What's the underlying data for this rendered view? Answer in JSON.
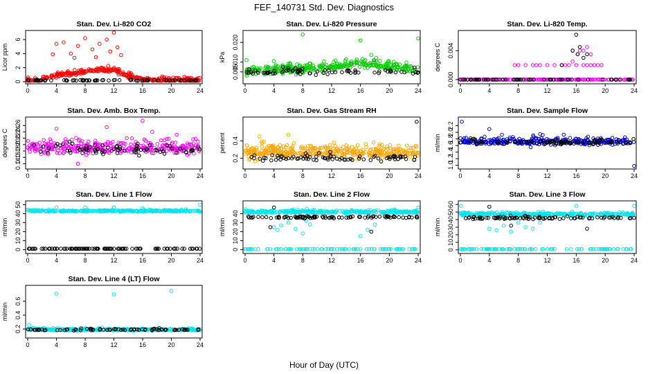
{
  "title": "FEF_140731  Std. Dev. Diagnostics",
  "xlabel": "Hour of Day (UTC)",
  "chart_data": [
    {
      "type": "scatter",
      "title": "Stan. Dev. Li-820 CO2",
      "ylabel": "Licor ppm",
      "xlim": [
        0,
        24
      ],
      "ylim": [
        0,
        7
      ],
      "xticks": [
        "0",
        "4",
        "8",
        "12",
        "16",
        "20",
        "24"
      ],
      "yticks": [
        {
          "v": 0,
          "t": "0"
        },
        {
          "v": 2,
          "t": "2"
        },
        {
          "v": 4,
          "t": "4"
        },
        {
          "v": 6,
          "t": "6"
        }
      ],
      "series": [
        {
          "color": "#ff0000",
          "gen": {
            "base": 0.6,
            "noise": 0.5,
            "n": 360,
            "outliers": [
              [
                4,
                5.4
              ],
              [
                5,
                5.6
              ],
              [
                6,
                4.0
              ],
              [
                7,
                5.1
              ],
              [
                8,
                6.2
              ],
              [
                9,
                4.6
              ],
              [
                10,
                5.4
              ],
              [
                11,
                6.0
              ],
              [
                12,
                7.0
              ],
              [
                12.5,
                4.9
              ],
              [
                13,
                3.8
              ],
              [
                3.5,
                3.9
              ],
              [
                6.5,
                3.4
              ],
              [
                9.5,
                3.5
              ],
              [
                11.5,
                4.3
              ]
            ],
            "bump": [
              [
                2,
                0.5
              ],
              [
                6,
                1.2
              ],
              [
                9,
                1.6
              ],
              [
                12,
                1.7
              ],
              [
                14,
                0.8
              ],
              [
                16,
                0.3
              ],
              [
                24,
                0.2
              ]
            ]
          }
        },
        {
          "color": "#000000",
          "gen": {
            "base": 0.2,
            "noise": 0.12,
            "n": 70
          }
        }
      ]
    },
    {
      "type": "scatter",
      "title": "Stan. Dev. Li-820 Pressure",
      "ylabel": "kPa",
      "xlim": [
        0,
        24
      ],
      "ylim": [
        0,
        0.025
      ],
      "xticks": [
        "0",
        "4",
        "8",
        "12",
        "16",
        "20",
        "24"
      ],
      "yticks": [
        {
          "v": 0.005,
          "t": "0.005"
        },
        {
          "v": 0.01,
          "t": "0.010"
        },
        {
          "v": 0.02,
          "t": "0.020"
        }
      ],
      "series": [
        {
          "color": "#00cc00",
          "gen": {
            "base": 0.0065,
            "noise": 0.0035,
            "n": 340,
            "outliers": [
              [
                8,
                0.024
              ],
              [
                16,
                0.021
              ],
              [
                24,
                0.022
              ],
              [
                0.2,
                0.011
              ],
              [
                16.5,
                0.0105
              ],
              [
                15.5,
                0.0095
              ]
            ],
            "bump": [
              [
                0,
                0.0055
              ],
              [
                8,
                0.0065
              ],
              [
                14,
                0.008
              ],
              [
                16,
                0.0095
              ],
              [
                20,
                0.0075
              ],
              [
                24,
                0.006
              ]
            ]
          }
        },
        {
          "color": "#000000",
          "gen": {
            "base": 0.005,
            "noise": 0.0025,
            "n": 70
          }
        }
      ]
    },
    {
      "type": "scatter",
      "title": "Stan. Dev. Li-820 Temp.",
      "ylabel": "degrees C",
      "xlim": [
        0,
        24
      ],
      "ylim": [
        -0.0003,
        0.0065
      ],
      "xticks": [
        "0",
        "4",
        "8",
        "12",
        "16",
        "20",
        "24"
      ],
      "yticks": [
        {
          "v": 0,
          "t": "0.000"
        },
        {
          "v": 0.004,
          "t": "0.004"
        }
      ],
      "series": [
        {
          "color": "#ff00ff",
          "gen": {
            "base": 0,
            "noise": 0,
            "n": 150,
            "outliers": [
              [
                7.5,
                0.002
              ],
              [
                8,
                0.002
              ],
              [
                9,
                0.002
              ],
              [
                10,
                0.002
              ],
              [
                10.5,
                0.002
              ],
              [
                11,
                0.002
              ],
              [
                12,
                0.002
              ],
              [
                13,
                0.002
              ],
              [
                14,
                0.002
              ],
              [
                14.5,
                0.002
              ],
              [
                15,
                0.002
              ],
              [
                15.5,
                0.004
              ],
              [
                16,
                0.002
              ],
              [
                16.5,
                0.004
              ],
              [
                17,
                0.002
              ],
              [
                17,
                0.004
              ],
              [
                17.5,
                0.002
              ],
              [
                18,
                0.002
              ],
              [
                18.5,
                0.002
              ],
              [
                19,
                0.002
              ],
              [
                19.5,
                0.002
              ],
              [
                15.5,
                0.0025
              ],
              [
                17.5,
                0.0045
              ],
              [
                18,
                0.0035
              ],
              [
                16.2,
                0.0035
              ]
            ]
          }
        },
        {
          "color": "#000000",
          "gen": {
            "base": 0,
            "noise": 0,
            "n": 60,
            "outliers": [
              [
                15.5,
                0.004
              ],
              [
                16,
                0.0062
              ],
              [
                16.2,
                0.0035
              ],
              [
                16.5,
                0.0045
              ],
              [
                17,
                0.003
              ],
              [
                14,
                0.002
              ],
              [
                17.5,
                0.0035
              ]
            ]
          }
        }
      ]
    },
    {
      "type": "scatter",
      "title": "Stan. Dev. Amb. Box Temp.",
      "ylabel": "degrees C",
      "xlim": [
        0,
        24
      ],
      "ylim": [
        0.13,
        0.28
      ],
      "xticks": [
        "0",
        "4",
        "8",
        "12",
        "16",
        "20",
        "24"
      ],
      "yticks": [
        {
          "v": 0.14,
          "t": "0.14"
        },
        {
          "v": 0.16,
          "t": "0.16"
        },
        {
          "v": 0.18,
          "t": "0.18"
        },
        {
          "v": 0.2,
          "t": "0.20"
        },
        {
          "v": 0.22,
          "t": "0.22"
        },
        {
          "v": 0.24,
          "t": "0.24"
        },
        {
          "v": 0.26,
          "t": "0.26"
        }
      ],
      "series": [
        {
          "color": "#ff00ff",
          "gen": {
            "base": 0.19,
            "noise": 0.035,
            "n": 300,
            "outliers": [
              [
                16,
                0.275
              ],
              [
                11,
                0.255
              ],
              [
                4,
                0.25
              ],
              [
                7,
                0.14
              ]
            ]
          }
        },
        {
          "color": "#000000",
          "gen": {
            "base": 0.185,
            "noise": 0.03,
            "n": 80
          }
        }
      ]
    },
    {
      "type": "scatter",
      "title": "Stan. Dev. Gas Stream RH",
      "ylabel": "percent",
      "xlim": [
        0,
        24
      ],
      "ylim": [
        0.1,
        0.65
      ],
      "xticks": [
        "0",
        "4",
        "8",
        "12",
        "16",
        "20",
        "24"
      ],
      "yticks": [
        {
          "v": 0.2,
          "t": "0.2"
        },
        {
          "v": 0.4,
          "t": "0.4"
        }
      ],
      "series": [
        {
          "color": "#ffa500",
          "gen": {
            "base": 0.27,
            "noise": 0.12,
            "n": 380,
            "outliers": [
              [
                6,
                0.47
              ],
              [
                2,
                0.45
              ]
            ]
          }
        },
        {
          "color": "#000000",
          "gen": {
            "base": 0.2,
            "noise": 0.06,
            "n": 80,
            "outliers": [
              [
                23.8,
                0.62
              ]
            ]
          }
        }
      ]
    },
    {
      "type": "scatter",
      "title": "Stan. Dev. Sample Flow",
      "ylabel": "ml/min",
      "xlim": [
        0,
        24
      ],
      "ylim": [
        0.95,
        2.4
      ],
      "xticks": [
        "0",
        "4",
        "8",
        "12",
        "16",
        "20",
        "24"
      ],
      "yticks": [
        {
          "v": 1.0,
          "t": "1.0"
        },
        {
          "v": 1.2,
          "t": "1.2"
        },
        {
          "v": 1.4,
          "t": "1.4"
        },
        {
          "v": 1.6,
          "t": "1.6"
        },
        {
          "v": 1.8,
          "t": "1.8"
        },
        {
          "v": 2.0,
          "t": "2.0"
        },
        {
          "v": 2.2,
          "t": "2.2"
        }
      ],
      "series": [
        {
          "color": "#0000cc",
          "gen": {
            "base": 1.72,
            "noise": 0.2,
            "n": 300,
            "outliers": [
              [
                24,
                0.98
              ],
              [
                0.2,
                2.32
              ],
              [
                4,
                2.1
              ]
            ]
          }
        },
        {
          "color": "#000000",
          "gen": {
            "base": 1.7,
            "noise": 0.12,
            "n": 80
          }
        }
      ]
    },
    {
      "type": "scatter",
      "title": "Stan. Dev. Line 1 Flow",
      "ylabel": "ml/min",
      "xlim": [
        0,
        24
      ],
      "ylim": [
        -2,
        52
      ],
      "xticks": [
        "0",
        "4",
        "8",
        "12",
        "16",
        "20",
        "24"
      ],
      "yticks": [
        {
          "v": 0,
          "t": "0"
        },
        {
          "v": 10,
          "t": "10"
        },
        {
          "v": 20,
          "t": "20"
        },
        {
          "v": 30,
          "t": "30"
        },
        {
          "v": 40,
          "t": "40"
        },
        {
          "v": 50,
          "t": "50"
        }
      ],
      "series": [
        {
          "color": "#00e5ee",
          "gen": {
            "base": 43,
            "noise": 1.5,
            "n": 300,
            "outliers": [
              [
                24,
                50
              ],
              [
                4,
                47
              ],
              [
                8,
                47
              ],
              [
                12,
                47
              ],
              [
                16,
                46
              ]
            ]
          }
        },
        {
          "color": "#000000",
          "gen": {
            "base": 1,
            "noise": 0.1,
            "n": 100
          }
        }
      ]
    },
    {
      "type": "scatter",
      "title": "Stan. Dev. Line 2 Flow",
      "ylabel": "ml/min",
      "xlim": [
        0,
        24
      ],
      "ylim": [
        -2,
        52
      ],
      "xticks": [
        "0",
        "4",
        "8",
        "12",
        "16",
        "20",
        "24"
      ],
      "yticks": [
        {
          "v": 0,
          "t": "0"
        },
        {
          "v": 10,
          "t": "10"
        },
        {
          "v": 20,
          "t": "20"
        },
        {
          "v": 30,
          "t": "30"
        },
        {
          "v": 40,
          "t": "40"
        }
      ],
      "series": [
        {
          "color": "#00e5ee",
          "gen": {
            "base": 42,
            "noise": 2.5,
            "n": 280,
            "outliers": [
              [
                4,
                25
              ],
              [
                4.5,
                22
              ],
              [
                5,
                27
              ],
              [
                6,
                30
              ],
              [
                7,
                23
              ],
              [
                8,
                18
              ],
              [
                8.5,
                32
              ],
              [
                9,
                28
              ],
              [
                16,
                15
              ],
              [
                17,
                22
              ],
              [
                18,
                28
              ],
              [
                24,
                47
              ],
              [
                0.1,
                45
              ]
            ]
          }
        },
        {
          "color": "#00e5ee",
          "gen": {
            "base": 0.5,
            "noise": 0.1,
            "n": 90
          }
        },
        {
          "color": "#000000",
          "gen": {
            "base": 36,
            "noise": 2,
            "n": 90,
            "outliers": [
              [
                4,
                47
              ],
              [
                3.5,
                25
              ],
              [
                17.5,
                20
              ]
            ]
          }
        }
      ]
    },
    {
      "type": "scatter",
      "title": "Stan. Dev. Line 3 Flow",
      "ylabel": "ml/min",
      "xlim": [
        0,
        24
      ],
      "ylim": [
        -2,
        62
      ],
      "xticks": [
        "0",
        "4",
        "8",
        "12",
        "16",
        "20",
        "24"
      ],
      "yticks": [
        {
          "v": 0,
          "t": "0"
        },
        {
          "v": 10,
          "t": "10"
        },
        {
          "v": 20,
          "t": "20"
        },
        {
          "v": 30,
          "t": "30"
        },
        {
          "v": 40,
          "t": "40"
        },
        {
          "v": 50,
          "t": "50"
        },
        {
          "v": 60,
          "t": "60"
        }
      ],
      "series": [
        {
          "color": "#00e5ee",
          "gen": {
            "base": 47,
            "noise": 3,
            "n": 280,
            "outliers": [
              [
                4,
                28
              ],
              [
                5,
                26
              ],
              [
                6,
                32
              ],
              [
                7,
                24
              ],
              [
                8,
                36
              ],
              [
                9,
                30
              ],
              [
                10,
                28
              ],
              [
                11,
                36
              ],
              [
                16,
                58
              ],
              [
                24,
                58
              ],
              [
                0.1,
                58
              ]
            ]
          }
        },
        {
          "color": "#00e5ee",
          "gen": {
            "base": 1,
            "noise": 0.2,
            "n": 90
          }
        },
        {
          "color": "#000000",
          "gen": {
            "base": 42,
            "noise": 3,
            "n": 90,
            "outliers": [
              [
                4,
                57
              ],
              [
                17.5,
                28
              ],
              [
                7,
                32
              ]
            ]
          }
        }
      ]
    },
    {
      "type": "scatter",
      "title": "Stan. Dev. Line 4 (LT) Flow",
      "ylabel": "ml/min",
      "xlim": [
        0,
        24
      ],
      "ylim": [
        0.1,
        0.8
      ],
      "xticks": [
        "0",
        "4",
        "8",
        "12",
        "16",
        "20",
        "24"
      ],
      "yticks": [
        {
          "v": 0.2,
          "t": "0.2"
        },
        {
          "v": 0.4,
          "t": "0.4"
        },
        {
          "v": 0.6,
          "t": "0.6"
        }
      ],
      "series": [
        {
          "color": "#00e5ee",
          "gen": {
            "base": 0.19,
            "noise": 0.025,
            "n": 300,
            "outliers": [
              [
                4,
                0.71
              ],
              [
                12,
                0.7
              ],
              [
                20,
                0.75
              ],
              [
                0.2,
                0.26
              ]
            ]
          }
        },
        {
          "color": "#000000",
          "gen": {
            "base": 0.19,
            "noise": 0.02,
            "n": 80
          }
        }
      ]
    }
  ]
}
